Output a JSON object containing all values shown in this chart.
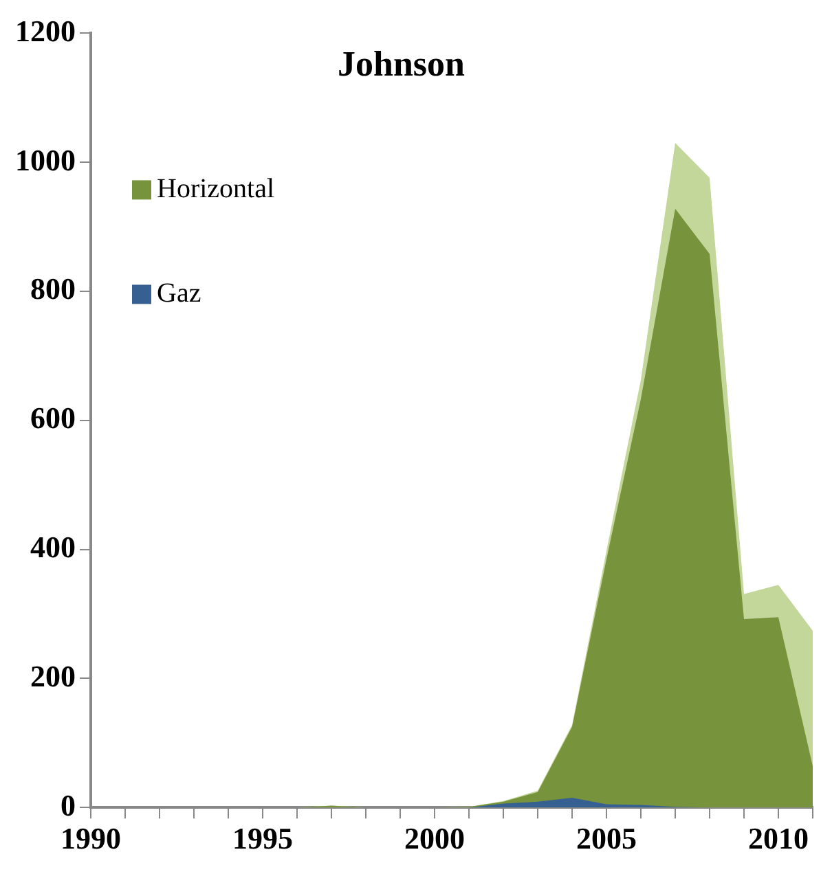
{
  "chart_data": {
    "type": "area",
    "title": "Johnson",
    "x": [
      1990,
      1991,
      1992,
      1993,
      1994,
      1995,
      1996,
      1997,
      1998,
      1999,
      2000,
      2001,
      2002,
      2003,
      2004,
      2005,
      2006,
      2007,
      2008,
      2009,
      2010,
      2011
    ],
    "series": [
      {
        "color": "#c4d79b",
        "values": [
          0,
          0,
          0,
          0,
          0,
          0,
          0,
          3,
          0,
          0,
          0,
          1,
          10,
          26,
          128,
          398,
          663,
          1030,
          976,
          331,
          345,
          274
        ]
      },
      {
        "name": "Horizontal",
        "color": "#77933c",
        "values": [
          0,
          0,
          0,
          0,
          0,
          0,
          0,
          3,
          0,
          0,
          0,
          1,
          9,
          24,
          125,
          385,
          633,
          928,
          858,
          292,
          295,
          64
        ]
      },
      {
        "name": "Gaz",
        "color": "#376092",
        "values": [
          0,
          0,
          0,
          0,
          0,
          0,
          0,
          0,
          0,
          0,
          0,
          0,
          6,
          9,
          15,
          5,
          4,
          1,
          0,
          0,
          0,
          0
        ]
      }
    ],
    "xlim": [
      1990,
      2011
    ],
    "xticks": [
      1990,
      {
        "value": 1991,
        "label": null
      },
      {
        "value": 1992,
        "label": null
      },
      {
        "value": 1993,
        "label": null
      },
      {
        "value": 1994,
        "label": null
      },
      1995,
      {
        "value": 1996,
        "label": null
      },
      {
        "value": 1997,
        "label": null
      },
      {
        "value": 1998,
        "label": null
      },
      {
        "value": 1999,
        "label": null
      },
      2000,
      {
        "value": 2001,
        "label": null
      },
      {
        "value": 2002,
        "label": null
      },
      {
        "value": 2003,
        "label": null
      },
      {
        "value": 2004,
        "label": null
      },
      2005,
      {
        "value": 2006,
        "label": null
      },
      {
        "value": 2007,
        "label": null
      },
      {
        "value": 2008,
        "label": null
      },
      {
        "value": 2009,
        "label": null
      },
      2010,
      {
        "value": 2011,
        "label": null
      }
    ],
    "ylim": [
      0,
      1200
    ],
    "yticks": [
      0,
      200,
      400,
      600,
      800,
      1000,
      1200
    ],
    "grid": false,
    "legend": "top left"
  }
}
